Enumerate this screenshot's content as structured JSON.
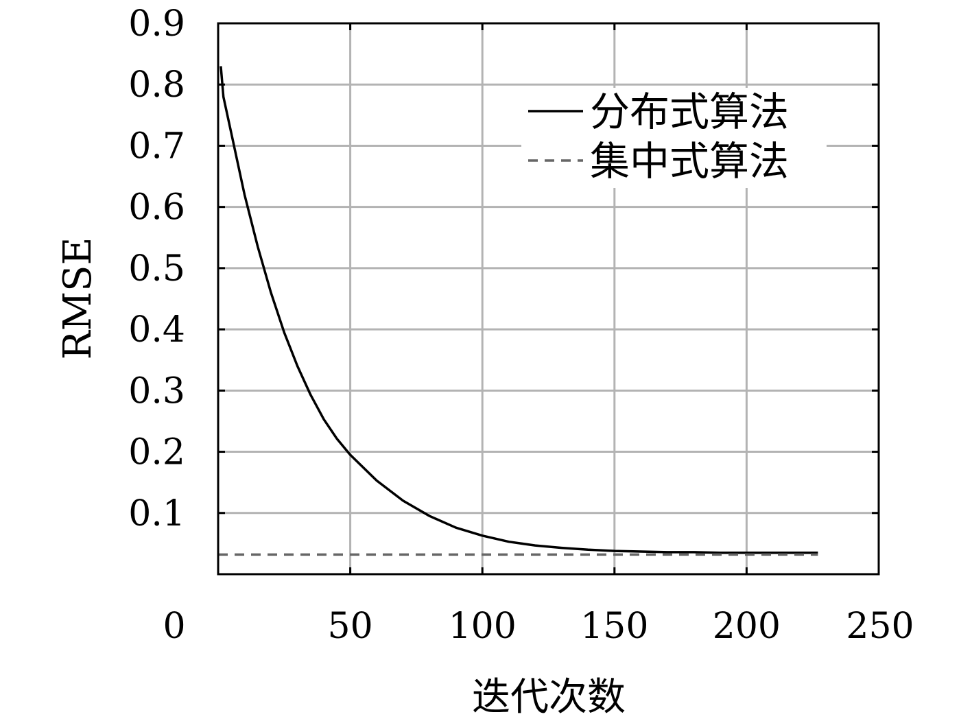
{
  "chart_data": {
    "type": "line",
    "title": "",
    "xlabel": "迭代次数",
    "ylabel": "RMSE",
    "xlim": [
      0,
      250
    ],
    "ylim": [
      0,
      0.9
    ],
    "xticks": [
      0,
      50,
      100,
      150,
      200,
      250
    ],
    "xtick_labels": [
      "0",
      "50",
      "100",
      "150",
      "200",
      "250"
    ],
    "yticks": [
      0.1,
      0.2,
      0.3,
      0.4,
      0.5,
      0.6,
      0.7,
      0.8,
      0.9
    ],
    "ytick_labels": [
      "0.1",
      "0.2",
      "0.3",
      "0.4",
      "0.5",
      "0.6",
      "0.7",
      "0.8",
      "0.9"
    ],
    "grid": true,
    "legend_position": "top-right",
    "series": [
      {
        "name": "分布式算法",
        "style": "solid",
        "color": "#000000",
        "x": [
          1,
          2,
          5,
          10,
          15,
          20,
          25,
          30,
          35,
          40,
          45,
          50,
          60,
          70,
          80,
          90,
          100,
          110,
          120,
          130,
          140,
          150,
          160,
          170,
          180,
          190,
          200,
          210,
          220,
          227
        ],
        "y": [
          0.83,
          0.78,
          0.72,
          0.62,
          0.535,
          0.46,
          0.395,
          0.34,
          0.293,
          0.253,
          0.221,
          0.195,
          0.153,
          0.12,
          0.095,
          0.076,
          0.063,
          0.053,
          0.047,
          0.043,
          0.04,
          0.038,
          0.037,
          0.036,
          0.036,
          0.035,
          0.035,
          0.035,
          0.035,
          0.035
        ]
      },
      {
        "name": "集中式算法",
        "style": "dashed",
        "color": "#666666",
        "x": [
          0,
          227
        ],
        "y": [
          0.032,
          0.032
        ]
      }
    ]
  }
}
